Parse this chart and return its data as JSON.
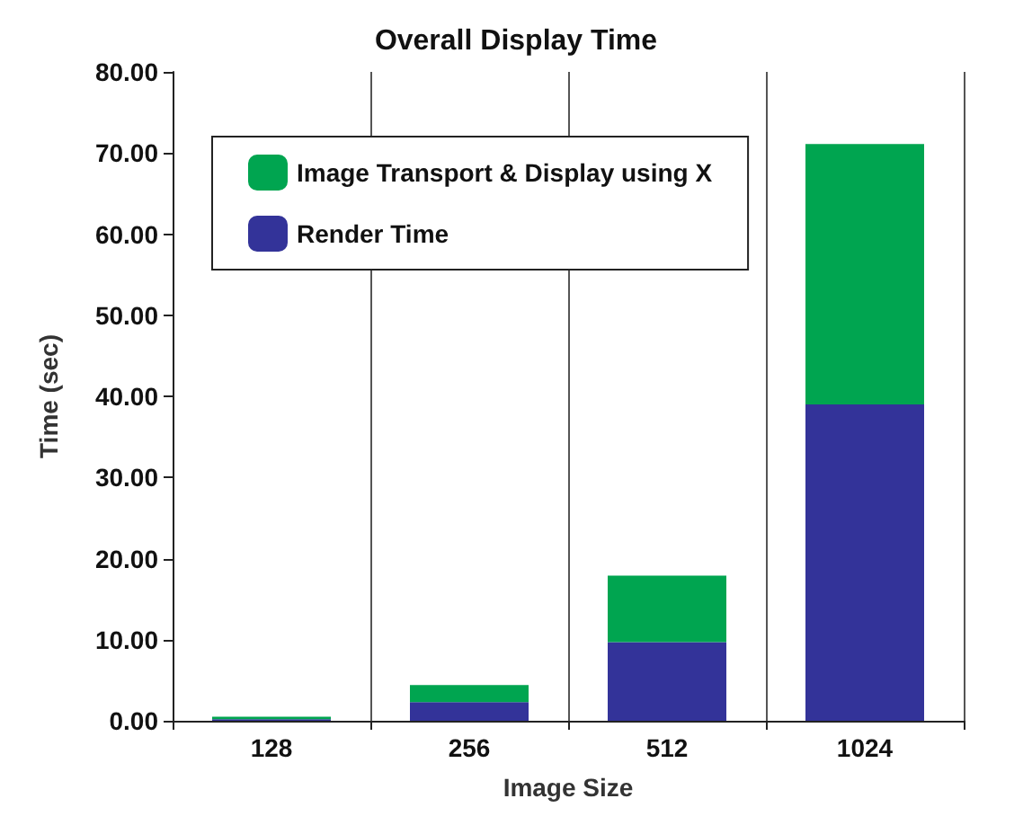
{
  "chart_data": {
    "type": "bar",
    "title": "Overall Display Time",
    "xlabel": "Image Size",
    "ylabel": "Time (sec)",
    "categories": [
      "128",
      "256",
      "512",
      "1024"
    ],
    "stacked": true,
    "grid": "x",
    "legend": "top left",
    "series": [
      {
        "name": "Render Time",
        "color": "#333399",
        "values": [
          0.2,
          2.3,
          9.7,
          39.0
        ]
      },
      {
        "name": "Image Transport & Display using X",
        "color": "#00a550",
        "values": [
          0.3,
          2.1,
          8.2,
          32.1
        ]
      }
    ],
    "ylim": [
      0,
      80
    ],
    "yticks": [
      {
        "value": 0,
        "label": "0.00"
      },
      {
        "value": 10,
        "label": "10.00"
      },
      {
        "value": 20,
        "label": "20.00"
      },
      {
        "value": 30,
        "label": "30.00"
      },
      {
        "value": 40,
        "label": "40.00"
      },
      {
        "value": 50,
        "label": "50.00"
      },
      {
        "value": 60,
        "label": "60.00"
      },
      {
        "value": 70,
        "label": "70.00"
      },
      {
        "value": 80,
        "label": "80.00"
      }
    ]
  }
}
